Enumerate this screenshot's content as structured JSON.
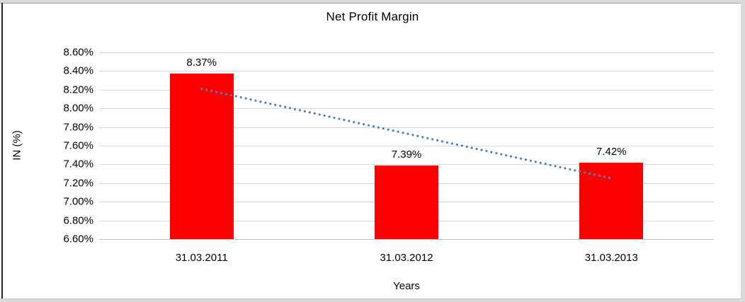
{
  "chart_data": {
    "type": "bar",
    "title": "Net Profit Margin",
    "xlabel": "Years",
    "ylabel": "IN (%)",
    "categories": [
      "31.03.2011",
      "31.03.2012",
      "31.03.2013"
    ],
    "values": [
      8.37,
      7.39,
      7.42
    ],
    "data_labels": [
      "8.37%",
      "7.39%",
      "7.42%"
    ],
    "ylim": [
      6.6,
      8.6
    ],
    "ytick_step": 0.2,
    "ytick_suffix": "%",
    "grid": "horizontal",
    "legend": "none",
    "trendline": {
      "style": "dotted",
      "start_value": 8.21,
      "end_value": 7.25,
      "color": "#4f81bd"
    },
    "bar_color": "#ff0000",
    "gridline_color": "#d9d9d9",
    "text_color": "#000000"
  }
}
